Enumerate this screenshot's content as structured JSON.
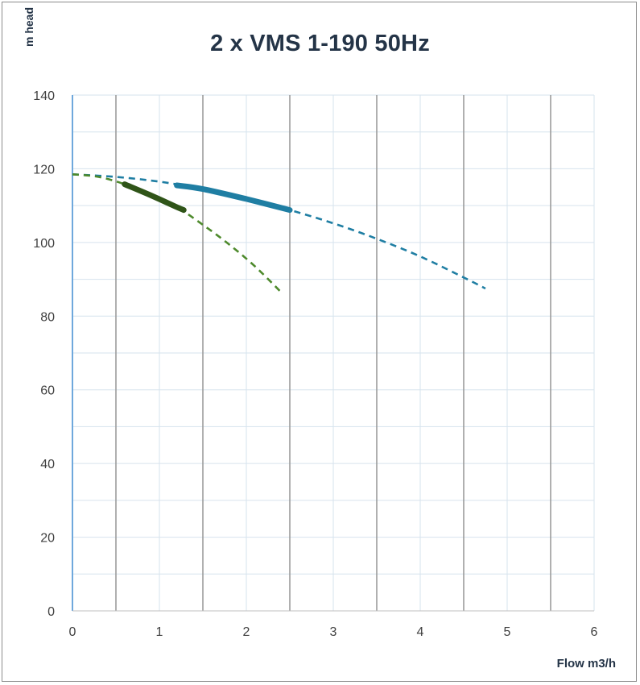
{
  "chart_data": {
    "type": "line",
    "title": "2 x VMS 1-190 50Hz",
    "xlabel": "Flow m3/h",
    "ylabel": "m head",
    "xlim": [
      0,
      6
    ],
    "ylim": [
      0,
      140
    ],
    "x_ticks": [
      "0",
      "1",
      "2",
      "3",
      "4",
      "5",
      "6"
    ],
    "y_ticks": [
      "0",
      "20",
      "40",
      "60",
      "80",
      "100",
      "120",
      "140"
    ],
    "grid": true,
    "series": [
      {
        "style": "dashed",
        "color": "#1f7ea3",
        "x": [
          0,
          0.5,
          1.0,
          1.5,
          2.0,
          2.5,
          3.0,
          3.5,
          4.0,
          4.5,
          4.75
        ],
        "y": [
          118.5,
          117.8,
          116.5,
          114.5,
          111.8,
          108.8,
          105.2,
          101.0,
          96.2,
          90.5,
          87.5
        ]
      },
      {
        "style": "solid-thick",
        "color": "#1f7ea3",
        "x": [
          1.2,
          1.5,
          2.0,
          2.5
        ],
        "y": [
          115.5,
          114.5,
          111.8,
          108.8
        ]
      },
      {
        "style": "dashed",
        "color": "#4e8a2c",
        "x": [
          0,
          0.3,
          0.6,
          0.9,
          1.2,
          1.5,
          1.8,
          2.1,
          2.4
        ],
        "y": [
          118.5,
          117.8,
          115.8,
          112.8,
          109.6,
          104.8,
          99.5,
          93.5,
          86.5
        ]
      },
      {
        "style": "solid-thick",
        "color": "#2f5418",
        "x": [
          0.6,
          0.9,
          1.2,
          1.28
        ],
        "y": [
          115.8,
          112.8,
          109.6,
          108.8
        ]
      }
    ]
  }
}
